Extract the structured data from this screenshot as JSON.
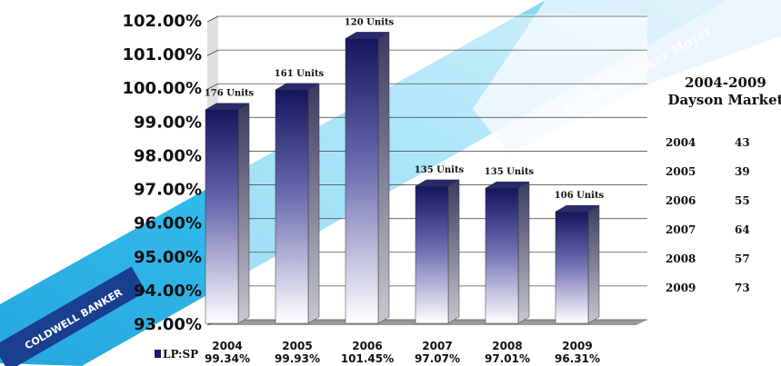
{
  "chart_data": {
    "type": "bar",
    "categories": [
      "2004",
      "2005",
      "2006",
      "2007",
      "2008",
      "2009"
    ],
    "values": [
      99.34,
      99.93,
      101.45,
      97.07,
      97.01,
      96.31
    ],
    "value_labels": [
      "99.34%",
      "99.93%",
      "101.45%",
      "97.07%",
      "97.01%",
      "96.31%"
    ],
    "unit_labels": [
      "176 Units",
      "161 Units",
      "120 Units",
      "135 Units",
      "135 Units",
      "106 Units"
    ],
    "ylim": [
      93,
      102
    ],
    "yticks": [
      "93.00%",
      "94.00%",
      "95.00%",
      "96.00%",
      "97.00%",
      "98.00%",
      "99.00%",
      "100.00%",
      "101.00%",
      "102.00%"
    ],
    "legend": "LP:SP",
    "grid": true
  },
  "side_panel": {
    "title_line1": "2004-2009",
    "title_line2": "Dayson Market",
    "rows": [
      {
        "year": "2004",
        "value": "43"
      },
      {
        "year": "2005",
        "value": "39"
      },
      {
        "year": "2006",
        "value": "55"
      },
      {
        "year": "2007",
        "value": "64"
      },
      {
        "year": "2008",
        "value": "57"
      },
      {
        "year": "2009",
        "value": "73"
      }
    ]
  },
  "watermark": {
    "text": "Coldwell Banker Moyer",
    "logo_text": "COLDWELL BANKER"
  },
  "colors": {
    "bar_dark": "#1a1a6e",
    "bar_light": "#ffffff",
    "banner": "#29b6e8",
    "banner_light": "#8fdcf5"
  }
}
